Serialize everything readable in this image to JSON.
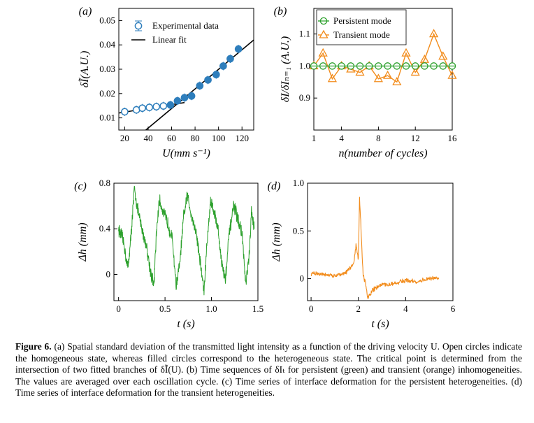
{
  "chart_data": [
    {
      "type": "scatter",
      "panel_label": "(a)",
      "xlabel": "U(mm s⁻¹)",
      "ylabel": "δĨ(A.U.)",
      "xlim": [
        15,
        130
      ],
      "ylim": [
        0.005,
        0.055
      ],
      "xticks": [
        20,
        40,
        60,
        80,
        100,
        120
      ],
      "yticks": [
        0.01,
        0.02,
        0.03,
        0.04,
        0.05
      ],
      "ytick_labels": [
        "0.01",
        "0.02",
        "0.03",
        "0.04",
        "0.05"
      ],
      "legend": [
        "Experimental data",
        "Linear fit"
      ],
      "series": [
        {
          "name": "Experimental data (homogeneous, open)",
          "x": [
            20,
            30,
            35,
            41,
            47,
            53
          ],
          "y": [
            0.0125,
            0.0133,
            0.014,
            0.0143,
            0.0146,
            0.0149
          ]
        },
        {
          "name": "Experimental data (heterogeneous, filled)",
          "x": [
            59,
            65,
            71,
            77,
            84,
            91,
            98,
            104,
            110,
            117
          ],
          "y": [
            0.0153,
            0.017,
            0.0183,
            0.019,
            0.0232,
            0.0256,
            0.0278,
            0.0313,
            0.0343,
            0.0383
          ]
        }
      ],
      "fit_lines": [
        {
          "name": "Linear fit (homogeneous branch)",
          "x": [
            15,
            71
          ],
          "y": [
            0.012,
            0.0163
          ]
        },
        {
          "name": "Linear fit (heterogeneous branch)",
          "x": [
            38,
            130
          ],
          "y": [
            0.005,
            0.042
          ]
        }
      ]
    },
    {
      "type": "line",
      "panel_label": "(b)",
      "xlabel": "n(number of cycles)",
      "ylabel": "δI/δIₙ₌₁ (A.U.)",
      "xlim": [
        1,
        16
      ],
      "ylim": [
        0.8,
        1.18
      ],
      "xticks": [
        1,
        4,
        8,
        12,
        16
      ],
      "yticks": [
        0.9,
        1.0,
        1.1
      ],
      "ytick_labels": [
        "0.9",
        "1.0",
        "1.1"
      ],
      "legend": [
        "Persistent mode",
        "Transient mode"
      ],
      "series": [
        {
          "name": "Persistent mode",
          "x": [
            1,
            2,
            3,
            4,
            5,
            6,
            7,
            8,
            9,
            10,
            11,
            12,
            13,
            14,
            15,
            16
          ],
          "y": [
            1.0,
            1.0,
            1.0,
            1.0,
            1.0,
            1.0,
            1.0,
            1.0,
            1.0,
            1.0,
            1.0,
            1.0,
            1.0,
            1.0,
            1.0,
            1.0
          ]
        },
        {
          "name": "Transient mode",
          "x": [
            1,
            2,
            3,
            4,
            5,
            6,
            7,
            8,
            9,
            10,
            11,
            12,
            13,
            14,
            15,
            16
          ],
          "y": [
            1.0,
            1.04,
            0.96,
            1.0,
            0.99,
            0.98,
            1.0,
            0.96,
            0.97,
            0.95,
            1.04,
            0.98,
            1.02,
            1.1,
            1.03,
            0.97
          ]
        }
      ]
    },
    {
      "type": "line",
      "panel_label": "(c)",
      "xlabel": "t (s)",
      "ylabel": "Δh (mm)",
      "xlim": [
        -0.05,
        1.5
      ],
      "ylim": [
        -0.23,
        0.8
      ],
      "xticks": [
        0,
        0.5,
        1.0,
        1.5
      ],
      "xtick_labels": [
        "0",
        "0.5",
        "1.0",
        "1.5"
      ],
      "yticks": [
        0,
        0.4,
        0.8
      ],
      "ytick_labels": [
        "0",
        "0.4",
        "0.8"
      ],
      "series": [
        {
          "name": "Persistent heterogeneity",
          "x": [
            0,
            0.05,
            0.1,
            0.13,
            0.17,
            0.21,
            0.25,
            0.3,
            0.35,
            0.38,
            0.41,
            0.44,
            0.48,
            0.53,
            0.58,
            0.62,
            0.66,
            0.7,
            0.74,
            0.79,
            0.84,
            0.88,
            0.92,
            0.95,
            0.99,
            1.03,
            1.07,
            1.11,
            1.15,
            1.19,
            1.24,
            1.28,
            1.33,
            1.37,
            1.41,
            1.43,
            1.46
          ],
          "y": [
            0.4,
            0.3,
            0.05,
            0.3,
            0.75,
            0.55,
            0.4,
            0.25,
            0.0,
            -0.1,
            0.4,
            0.65,
            0.55,
            0.45,
            0.3,
            -0.1,
            0.1,
            0.5,
            0.7,
            0.5,
            0.35,
            0.1,
            -0.15,
            0.25,
            0.65,
            0.55,
            0.4,
            0.1,
            -0.05,
            0.35,
            0.6,
            0.5,
            0.35,
            -0.1,
            0.2,
            0.55,
            0.4
          ]
        }
      ]
    },
    {
      "type": "line",
      "panel_label": "(d)",
      "xlabel": "t (s)",
      "ylabel": "Δh (mm)",
      "xlim": [
        -0.15,
        6
      ],
      "ylim": [
        -0.23,
        1.0
      ],
      "xticks": [
        0,
        2,
        4,
        6
      ],
      "yticks": [
        0,
        0.5,
        1.0
      ],
      "ytick_labels": [
        "0",
        "0.5",
        "1.0"
      ],
      "series": [
        {
          "name": "Transient heterogeneity",
          "x": [
            0,
            0.5,
            1.0,
            1.5,
            1.8,
            1.9,
            2.0,
            2.05,
            2.1,
            2.15,
            2.2,
            2.3,
            2.4,
            2.6,
            3.0,
            3.5,
            4.0,
            4.5,
            5.0,
            5.4
          ],
          "y": [
            0.05,
            0.05,
            0.03,
            0.07,
            0.15,
            0.35,
            0.2,
            0.85,
            0.6,
            0.3,
            0.05,
            -0.05,
            -0.2,
            -0.12,
            -0.06,
            -0.05,
            -0.02,
            -0.03,
            0.0,
            0.01
          ]
        }
      ]
    }
  ],
  "caption": {
    "figure_label": "Figure 6.",
    "text": "(a) Spatial standard deviation of the transmitted light intensity as a function of the driving velocity U. Open circles indicate the homogeneous state, whereas filled circles correspond to the heterogeneous state. The critical point is determined from the intersection of two fitted branches of δĨ(U). (b) Time sequences of δIₜ for persistent (green) and transient (orange) inhomogeneities. The values are averaged over each oscillation cycle. (c) Time series of interface deformation for the persistent heterogeneities. (d) Time series of interface deformation for the transient heterogeneities."
  },
  "colors": {
    "blue": "#2e7ebc",
    "green": "#2ca02c",
    "orange": "#f28c1c",
    "black": "#000000"
  }
}
